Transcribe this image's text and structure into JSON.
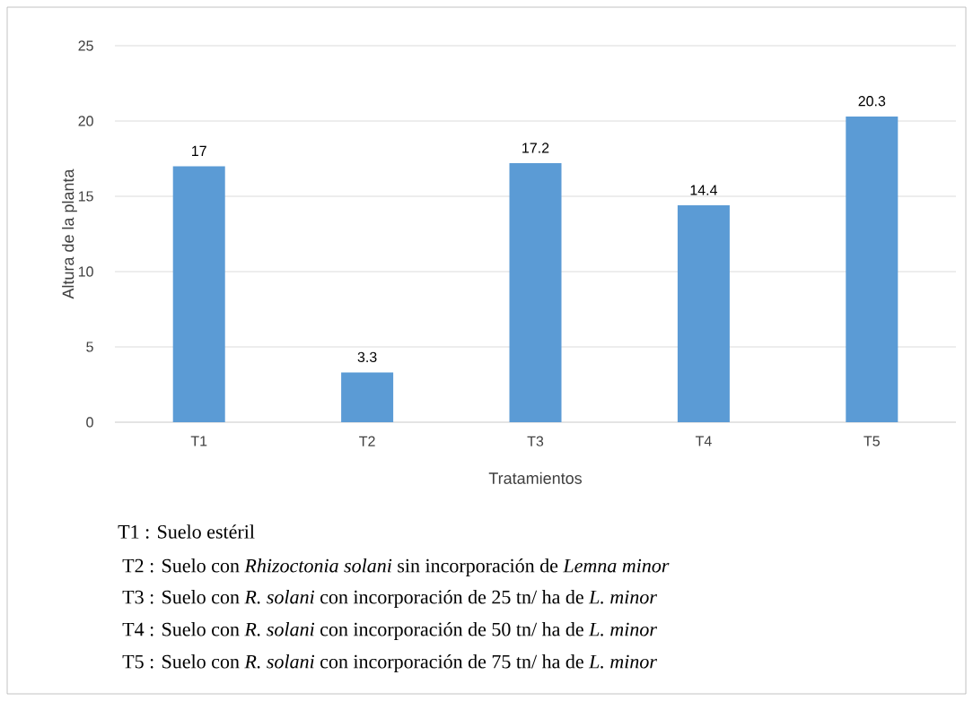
{
  "chart_data": {
    "type": "bar",
    "xlabel": "Tratamientos",
    "ylabel": "Altura de la planta",
    "categories": [
      "T1",
      "T2",
      "T3",
      "T4",
      "T5"
    ],
    "values": [
      17,
      3.3,
      17.2,
      14.4,
      20.3
    ],
    "color": "#5b9bd5",
    "ylim": [
      0,
      25
    ],
    "yticks": [
      0,
      5,
      10,
      15,
      20,
      25
    ],
    "grid": "y",
    "data_labels": true,
    "annotations": [
      "T1 :  Suelo estéril",
      "T2 :  Suelo  con *Rhizoctonia solani* sin incorporación de *Lemna minor*",
      "T3 :  Suelo con *R. solani* con incorporación de 25 tn/ ha de *L. minor*",
      "T4 :  Suelo con *R. solani* con incorporación de 50 tn/ ha de *L. minor*",
      "T5 :  Suelo con *R. solani* con incorporación de 75 tn/ ha de *L. minor*"
    ]
  }
}
